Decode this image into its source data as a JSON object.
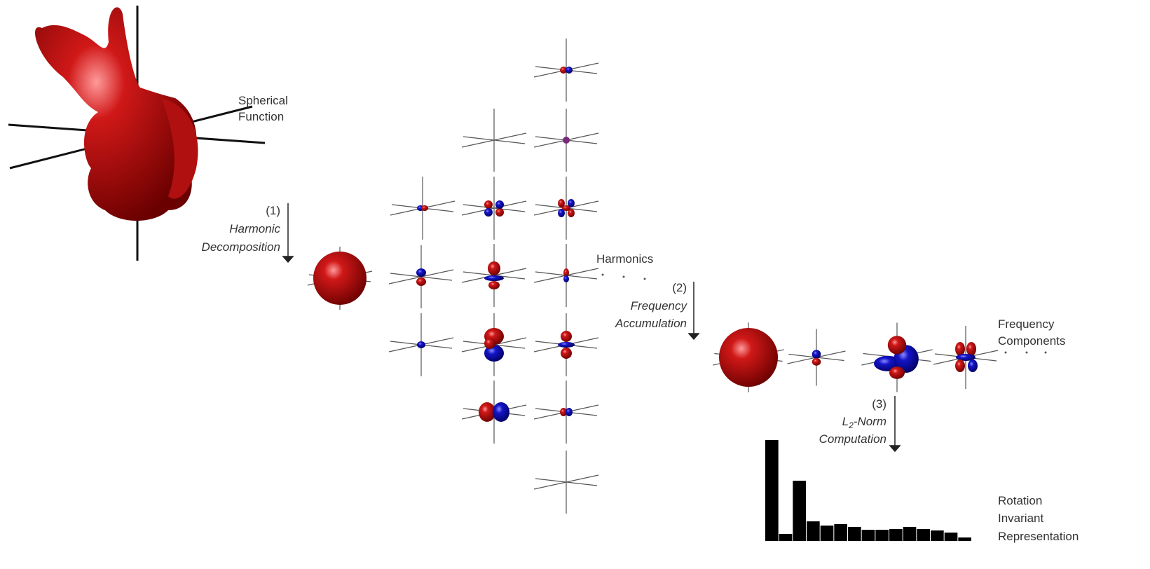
{
  "labels": {
    "spherical_function": [
      "Spherical",
      "Function"
    ],
    "step1": {
      "number": "(1)",
      "lines": [
        "Harmonic",
        "Decomposition"
      ]
    },
    "harmonics": "Harmonics",
    "step2": {
      "number": "(2)",
      "lines": [
        "Frequency",
        "Accumulation"
      ]
    },
    "frequency_components": [
      "Frequency",
      "Components"
    ],
    "step3": {
      "number": "(3)",
      "prefix": "L",
      "subscript": "2",
      "suffix": "-Norm",
      "line2": "Computation"
    },
    "representation": [
      "Rotation",
      "Invariant",
      "Representation"
    ]
  },
  "histogram": {
    "values": [
      144,
      10,
      86,
      28,
      22,
      24,
      20,
      16,
      16,
      17,
      20,
      17,
      15,
      12,
      5
    ],
    "color": "#000000"
  }
}
